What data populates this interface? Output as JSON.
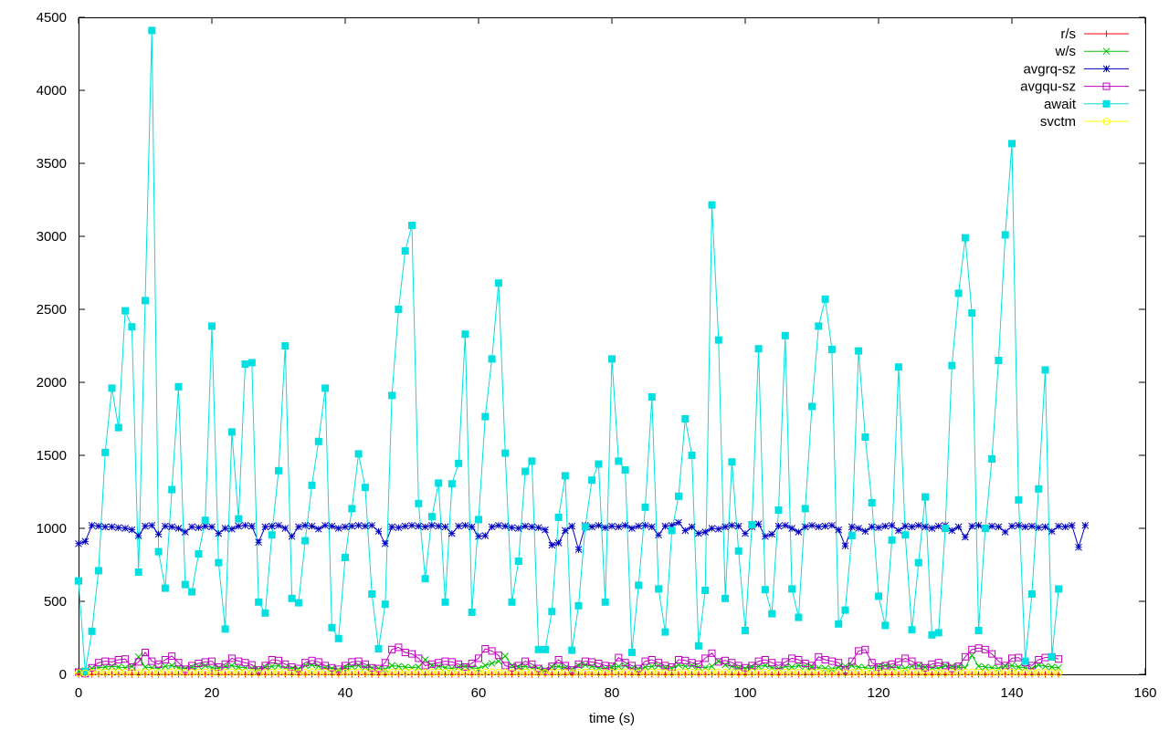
{
  "chart_data": {
    "type": "line",
    "xlabel": "time (s)",
    "ylabel": "",
    "xlim": [
      0,
      160
    ],
    "ylim": [
      0,
      4500
    ],
    "xticks": [
      0,
      20,
      40,
      60,
      80,
      100,
      120,
      140,
      160
    ],
    "yticks": [
      0,
      500,
      1000,
      1500,
      2000,
      2500,
      3000,
      3500,
      4000,
      4500
    ],
    "grid": false,
    "legend_position": "top-right",
    "series": [
      {
        "name": "r/s",
        "color": "#ff0000",
        "marker": "plus",
        "values": [
          0,
          0,
          0,
          0,
          0,
          0,
          0,
          0,
          0,
          0,
          0,
          0,
          0,
          0,
          0,
          0,
          0,
          0,
          0,
          0,
          0,
          0,
          0,
          0,
          0,
          0,
          0,
          0,
          0,
          0,
          0,
          0,
          0,
          0,
          0,
          0,
          0,
          0,
          0,
          0,
          0,
          0,
          0,
          0,
          0,
          0,
          0,
          0,
          0,
          0,
          0,
          0,
          0,
          0,
          0,
          0,
          0,
          0,
          0,
          0,
          0,
          0,
          0,
          0,
          0,
          0,
          0,
          0,
          0,
          0,
          0,
          0,
          0,
          0,
          0,
          0,
          0,
          0,
          0,
          0,
          0,
          0,
          0,
          0,
          0,
          0,
          0,
          0,
          0,
          0,
          0,
          0,
          0,
          0,
          0,
          0,
          0,
          0,
          0,
          0,
          0,
          0,
          0,
          0,
          0,
          0,
          0,
          0,
          0,
          0,
          0,
          0,
          0,
          0,
          0,
          0,
          0,
          0,
          0,
          0,
          0,
          0,
          0,
          0,
          0,
          0,
          0,
          0,
          0,
          0,
          0,
          0,
          0,
          0,
          0,
          0,
          0,
          0,
          0,
          0,
          0,
          0,
          0,
          0,
          0,
          0,
          0,
          0
        ]
      },
      {
        "name": "w/s",
        "color": "#00c000",
        "marker": "cross",
        "values": [
          20,
          25,
          40,
          45,
          50,
          55,
          50,
          45,
          55,
          120,
          50,
          45,
          40,
          55,
          60,
          45,
          40,
          50,
          55,
          60,
          45,
          40,
          55,
          60,
          50,
          45,
          40,
          35,
          50,
          55,
          60,
          45,
          40,
          35,
          60,
          65,
          55,
          45,
          40,
          30,
          50,
          55,
          60,
          50,
          45,
          40,
          35,
          60,
          55,
          50,
          45,
          50,
          100,
          60,
          55,
          45,
          40,
          50,
          55,
          45,
          40,
          60,
          75,
          90,
          125,
          60,
          50,
          55,
          45,
          40,
          30,
          50,
          55,
          45,
          35,
          60,
          65,
          55,
          45,
          40,
          50,
          55,
          60,
          40,
          35,
          50,
          55,
          60,
          45,
          40,
          65,
          55,
          60,
          50,
          45,
          55,
          90,
          65,
          55,
          45,
          40,
          50,
          55,
          60,
          45,
          40,
          55,
          50,
          60,
          55,
          50,
          45,
          40,
          35,
          50,
          55,
          60,
          50,
          45,
          40,
          55,
          60,
          50,
          45,
          40,
          55,
          60,
          50,
          45,
          40,
          60,
          55,
          50,
          45,
          130,
          55,
          50,
          45,
          40,
          55,
          60,
          50,
          45,
          40,
          65,
          55,
          50,
          45
        ]
      },
      {
        "name": "avgrq-sz",
        "color": "#0000c0",
        "marker": "star",
        "values": [
          895,
          910,
          1020,
          1015,
          1010,
          1010,
          1005,
          1000,
          990,
          950,
          1015,
          1020,
          960,
          1015,
          1010,
          1000,
          975,
          1010,
          1005,
          1015,
          1010,
          965,
          1000,
          995,
          1015,
          1020,
          1015,
          905,
          1010,
          1015,
          1020,
          1000,
          945,
          1010,
          1020,
          1015,
          995,
          1020,
          1015,
          1000,
          1010,
          1015,
          1020,
          1015,
          1020,
          980,
          895,
          1010,
          1005,
          1015,
          1020,
          1015,
          1010,
          1020,
          1015,
          1010,
          965,
          1015,
          1020,
          1010,
          945,
          950,
          1010,
          1020,
          1015,
          1005,
          1000,
          1015,
          1010,
          1005,
          990,
          885,
          900,
          985,
          1015,
          855,
          1020,
          1010,
          1020,
          1005,
          1015,
          1010,
          1020,
          1000,
          1015,
          1020,
          1010,
          955,
          1015,
          1020,
          1040,
          985,
          1010,
          965,
          975,
          1000,
          995,
          1010,
          1020,
          1015,
          965,
          1010,
          1030,
          945,
          960,
          1015,
          1020,
          1000,
          975,
          1010,
          1020,
          1010,
          1015,
          1020,
          990,
          880,
          1010,
          1000,
          980,
          1010,
          1005,
          1015,
          1020,
          985,
          1015,
          1010,
          1020,
          1010,
          1000,
          1015,
          1020,
          985,
          1010,
          940,
          1015,
          1020,
          1000,
          1015,
          1010,
          975,
          1015,
          1020,
          1010,
          1015,
          1005,
          1010,
          980,
          1015,
          1010,
          1020,
          870,
          1020
        ]
      },
      {
        "name": "avgqu-sz",
        "color": "#c000c0",
        "marker": "square-open",
        "values": [
          15,
          5,
          45,
          80,
          90,
          85,
          100,
          105,
          50,
          85,
          150,
          90,
          70,
          100,
          125,
          80,
          35,
          60,
          75,
          85,
          90,
          50,
          70,
          110,
          90,
          80,
          65,
          30,
          60,
          100,
          95,
          70,
          50,
          40,
          80,
          95,
          85,
          60,
          45,
          35,
          60,
          85,
          90,
          70,
          45,
          40,
          80,
          170,
          185,
          150,
          140,
          110,
          60,
          70,
          80,
          90,
          85,
          70,
          50,
          75,
          110,
          175,
          160,
          130,
          60,
          45,
          60,
          90,
          70,
          40,
          20,
          55,
          100,
          60,
          30,
          70,
          90,
          85,
          75,
          60,
          55,
          115,
          80,
          60,
          40,
          90,
          100,
          80,
          60,
          50,
          100,
          95,
          80,
          70,
          110,
          145,
          85,
          95,
          80,
          60,
          45,
          60,
          90,
          100,
          80,
          60,
          85,
          110,
          100,
          75,
          60,
          120,
          100,
          90,
          80,
          30,
          90,
          160,
          170,
          80,
          50,
          60,
          70,
          85,
          110,
          90,
          60,
          45,
          70,
          80,
          60,
          40,
          55,
          120,
          170,
          180,
          170,
          140,
          90,
          60,
          110,
          115,
          80,
          60,
          100,
          115,
          120,
          105
        ]
      },
      {
        "name": "await",
        "color": "#00e0e0",
        "marker": "square-filled",
        "values": [
          640,
          20,
          295,
          710,
          1520,
          1960,
          1690,
          2490,
          2380,
          700,
          2560,
          4410,
          840,
          590,
          1265,
          1970,
          615,
          565,
          825,
          1055,
          2385,
          765,
          310,
          1660,
          1065,
          2125,
          2135,
          495,
          420,
          955,
          1395,
          2250,
          520,
          490,
          915,
          1295,
          1595,
          1960,
          320,
          245,
          800,
          1135,
          1510,
          1280,
          550,
          175,
          480,
          1910,
          2500,
          2900,
          3075,
          1170,
          655,
          1080,
          1310,
          495,
          1305,
          1445,
          2330,
          425,
          1060,
          1765,
          2160,
          2680,
          1515,
          495,
          775,
          1390,
          1460,
          170,
          170,
          430,
          1075,
          1360,
          165,
          470,
          1010,
          1330,
          1440,
          495,
          2160,
          1460,
          1400,
          150,
          610,
          1145,
          1900,
          585,
          290,
          985,
          1220,
          1750,
          1500,
          195,
          575,
          3215,
          2290,
          520,
          1455,
          845,
          300,
          1025,
          2230,
          580,
          415,
          1125,
          2320,
          585,
          390,
          1135,
          1835,
          2385,
          2570,
          2225,
          345,
          440,
          950,
          2215,
          1625,
          1175,
          535,
          335,
          920,
          2105,
          955,
          305,
          765,
          1215,
          270,
          285,
          1000,
          2115,
          2610,
          2990,
          2475,
          300,
          1000,
          1475,
          2150,
          3010,
          3635,
          1195,
          90,
          550,
          1270,
          2085,
          120,
          585
        ]
      },
      {
        "name": "svctm",
        "color": "#ffff00",
        "marker": "circle-open",
        "values": [
          10,
          8,
          12,
          15,
          14,
          16,
          15,
          14,
          12,
          10,
          15,
          14,
          12,
          13,
          15,
          14,
          12,
          13,
          14,
          15,
          14,
          12,
          13,
          15,
          14,
          13,
          12,
          10,
          13,
          14,
          15,
          14,
          12,
          11,
          13,
          15,
          14,
          13,
          12,
          10,
          13,
          14,
          15,
          13,
          12,
          11,
          10,
          14,
          15,
          16,
          15,
          13,
          12,
          13,
          14,
          13,
          12,
          13,
          15,
          12,
          13,
          16,
          15,
          14,
          13,
          12,
          13,
          14,
          13,
          12,
          10,
          12,
          13,
          12,
          10,
          13,
          14,
          13,
          12,
          11,
          14,
          15,
          14,
          12,
          10,
          13,
          14,
          13,
          12,
          11,
          13,
          14,
          13,
          12,
          13,
          15,
          14,
          13,
          12,
          11,
          10,
          13,
          14,
          13,
          12,
          11,
          13,
          14,
          13,
          12,
          12,
          13,
          14,
          13,
          12,
          10,
          13,
          14,
          15,
          13,
          12,
          11,
          12,
          13,
          14,
          13,
          12,
          10,
          11,
          12,
          10,
          13,
          14,
          15,
          14,
          13,
          12,
          13,
          14,
          15,
          14,
          13,
          12,
          11,
          12,
          13,
          12,
          11
        ]
      }
    ]
  }
}
